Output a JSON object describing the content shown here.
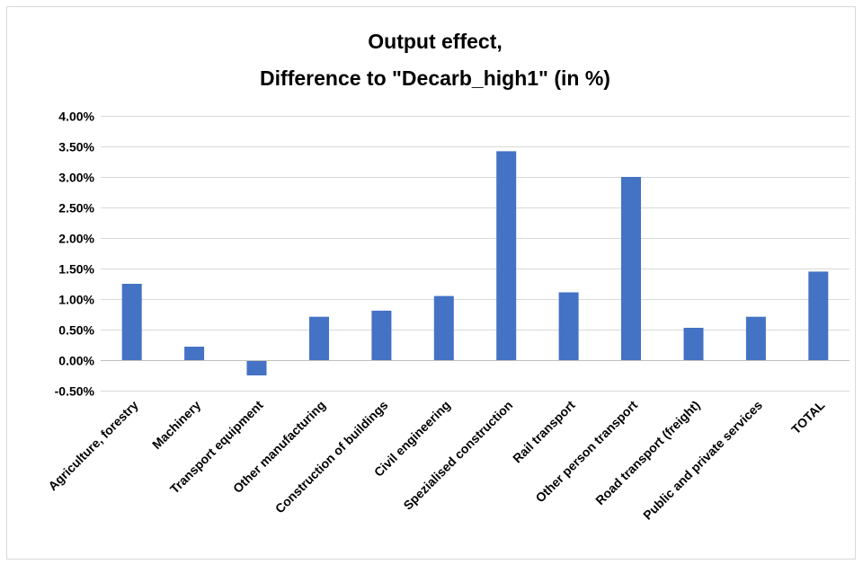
{
  "chart_data": {
    "type": "bar",
    "title": [
      "Output effect,",
      "Difference to \"Decarb_high1\" (in %)"
    ],
    "xlabel": "",
    "ylabel": "",
    "ylim": [
      -0.5,
      4.0
    ],
    "ytick_step": 0.5,
    "ytick_labels": [
      "-0.50%",
      "0.00%",
      "0.50%",
      "1.00%",
      "1.50%",
      "2.00%",
      "2.50%",
      "3.00%",
      "3.50%",
      "4.00%"
    ],
    "grid": true,
    "legend": "none",
    "bar_color": "#4472c4",
    "categories": [
      "Agriculture, forestry",
      "Machinery",
      "Transport equipment",
      "Other manufacturing",
      "Construction of buildings",
      "Civil engineering",
      "Spezialised construction",
      "Rail transport",
      "Other person transport",
      "Road transport (freight)",
      "Public and private services",
      "TOTAL"
    ],
    "values": [
      1.25,
      0.22,
      -0.25,
      0.71,
      0.81,
      1.05,
      3.42,
      1.11,
      3.0,
      0.53,
      0.71,
      1.45
    ]
  }
}
